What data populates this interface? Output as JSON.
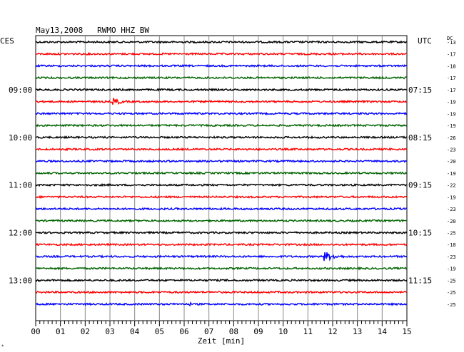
{
  "chart_data": {
    "type": "line",
    "title": "May13,2008   RWMO HHZ BW",
    "left_timezone": "CES",
    "right_timezone": "UTC",
    "offset_header": "DC",
    "xlabel": "Zeit [min]",
    "x_ticks": [
      "00",
      "01",
      "02",
      "03",
      "04",
      "05",
      "06",
      "07",
      "08",
      "09",
      "10",
      "11",
      "12",
      "13",
      "14",
      "15"
    ],
    "xlim": [
      0,
      15
    ],
    "left_hour_labels": [
      {
        "row": 4,
        "text": "09:00"
      },
      {
        "row": 8,
        "text": "10:00"
      },
      {
        "row": 12,
        "text": "11:00"
      },
      {
        "row": 16,
        "text": "12:00"
      },
      {
        "row": 20,
        "text": "13:00"
      }
    ],
    "right_hour_labels": [
      {
        "row": 4,
        "text": "07:15"
      },
      {
        "row": 8,
        "text": "08:15"
      },
      {
        "row": 12,
        "text": "09:15"
      },
      {
        "row": 16,
        "text": "10:15"
      },
      {
        "row": 20,
        "text": "11:15"
      }
    ],
    "trace_colors": [
      "#000000",
      "#ff0000",
      "#0000ff",
      "#006400"
    ],
    "dc_offsets": [
      "-13",
      "-17",
      "-18",
      "-17",
      "-17",
      "-19",
      "-19",
      "-19",
      "-26",
      "-23",
      "-20",
      "-19",
      "-22",
      "-19",
      "-23",
      "-20",
      "-25",
      "-18",
      "-23",
      "-19",
      "-25",
      "-25",
      "-25"
    ],
    "events": [
      {
        "row": 5,
        "start_min": 3.1,
        "duration_min": 1.2,
        "amplitude": 6
      },
      {
        "row": 18,
        "start_min": 11.6,
        "duration_min": 1.6,
        "amplitude": 8
      },
      {
        "row": 22,
        "start_min": 6.2,
        "duration_min": 0.3,
        "amplitude": 4
      }
    ]
  },
  "corner_mark": "*"
}
